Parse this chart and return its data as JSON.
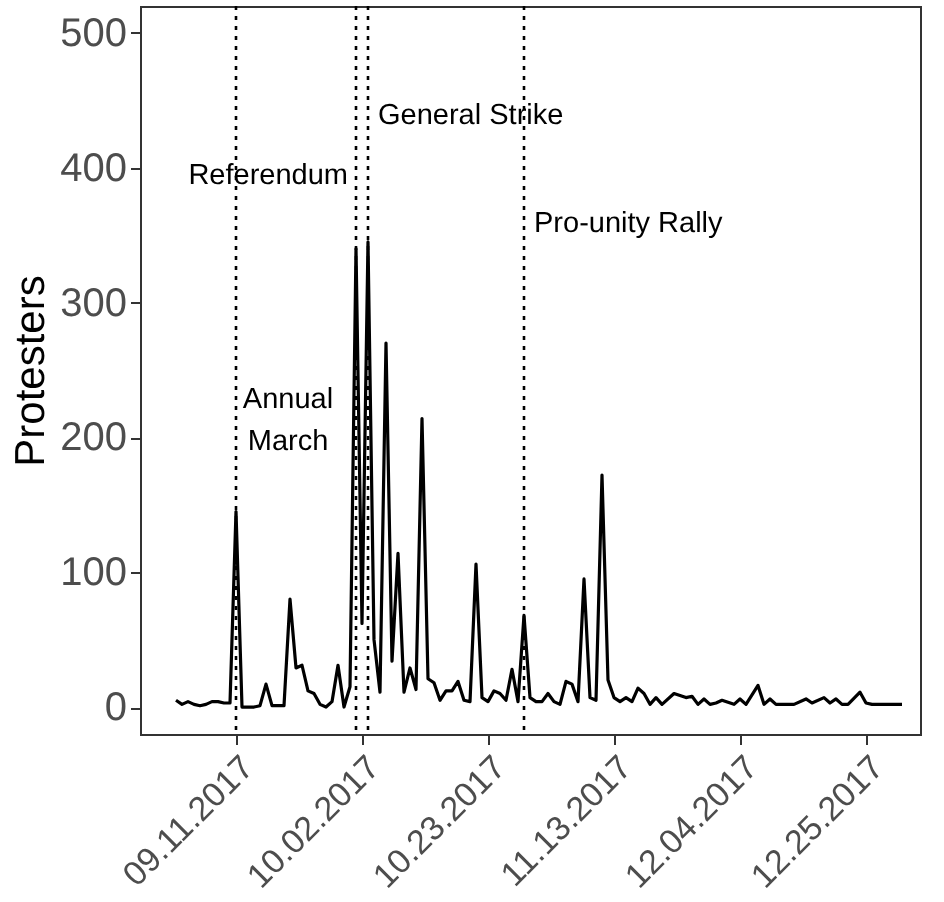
{
  "chart_data": {
    "type": "line",
    "ylabel": "Protesters",
    "x": [
      "2017-09-01",
      "2017-09-02",
      "2017-09-03",
      "2017-09-04",
      "2017-09-05",
      "2017-09-06",
      "2017-09-07",
      "2017-09-08",
      "2017-09-09",
      "2017-09-10",
      "2017-09-11",
      "2017-09-12",
      "2017-09-13",
      "2017-09-14",
      "2017-09-15",
      "2017-09-16",
      "2017-09-17",
      "2017-09-18",
      "2017-09-19",
      "2017-09-20",
      "2017-09-21",
      "2017-09-22",
      "2017-09-23",
      "2017-09-24",
      "2017-09-25",
      "2017-09-26",
      "2017-09-27",
      "2017-09-28",
      "2017-09-29",
      "2017-09-30",
      "2017-10-01",
      "2017-10-02",
      "2017-10-03",
      "2017-10-04",
      "2017-10-05",
      "2017-10-06",
      "2017-10-07",
      "2017-10-08",
      "2017-10-09",
      "2017-10-10",
      "2017-10-11",
      "2017-10-12",
      "2017-10-13",
      "2017-10-14",
      "2017-10-15",
      "2017-10-16",
      "2017-10-17",
      "2017-10-18",
      "2017-10-19",
      "2017-10-20",
      "2017-10-21",
      "2017-10-22",
      "2017-10-23",
      "2017-10-24",
      "2017-10-25",
      "2017-10-26",
      "2017-10-27",
      "2017-10-28",
      "2017-10-29",
      "2017-10-30",
      "2017-10-31",
      "2017-11-01",
      "2017-11-02",
      "2017-11-03",
      "2017-11-04",
      "2017-11-05",
      "2017-11-06",
      "2017-11-07",
      "2017-11-08",
      "2017-11-09",
      "2017-11-10",
      "2017-11-11",
      "2017-11-12",
      "2017-11-13",
      "2017-11-14",
      "2017-11-15",
      "2017-11-16",
      "2017-11-17",
      "2017-11-18",
      "2017-11-19",
      "2017-11-20",
      "2017-11-21",
      "2017-11-23",
      "2017-11-25",
      "2017-11-26",
      "2017-11-27",
      "2017-11-28",
      "2017-11-29",
      "2017-11-30",
      "2017-12-01",
      "2017-12-03",
      "2017-12-04",
      "2017-12-05",
      "2017-12-07",
      "2017-12-08",
      "2017-12-09",
      "2017-12-10",
      "2017-12-11",
      "2017-12-13",
      "2017-12-15",
      "2017-12-16",
      "2017-12-18",
      "2017-12-19",
      "2017-12-20",
      "2017-12-21",
      "2017-12-22",
      "2017-12-24",
      "2017-12-25",
      "2017-12-26",
      "2017-12-28",
      "2017-12-29",
      "2017-12-31"
    ],
    "series": [
      {
        "color": "#000000",
        "values": [
          5,
          2,
          4,
          2,
          1,
          2,
          4,
          4,
          3,
          3,
          145,
          0,
          0,
          0,
          1,
          17,
          1,
          1,
          1,
          80,
          29,
          31,
          12,
          10,
          2,
          0,
          4,
          31,
          0,
          15,
          340,
          62,
          345,
          50,
          11,
          270,
          34,
          114,
          11,
          29,
          13,
          214,
          21,
          18,
          5,
          12,
          12,
          19,
          5,
          4,
          106,
          7,
          4,
          12,
          10,
          5,
          28,
          4,
          68,
          7,
          4,
          4,
          10,
          4,
          2,
          19,
          17,
          4,
          95,
          7,
          5,
          172,
          20,
          7,
          4,
          7,
          4,
          14,
          10,
          2,
          7,
          2,
          10,
          7,
          8,
          2,
          6,
          2,
          3,
          5,
          2,
          6,
          2,
          16,
          2,
          6,
          2,
          2,
          2,
          6,
          3,
          7,
          3,
          6,
          2,
          2,
          11,
          3,
          2,
          2,
          2,
          2
        ]
      }
    ],
    "xlim": [
      "2017-08-26",
      "2018-01-03"
    ],
    "xticks": [
      {
        "value": "2017-09-11",
        "label": "09.11.2017"
      },
      {
        "value": "2017-10-02",
        "label": "10.02.2017"
      },
      {
        "value": "2017-10-23",
        "label": "10.23.2017"
      },
      {
        "value": "2017-11-13",
        "label": "11.13.2017"
      },
      {
        "value": "2017-12-04",
        "label": "12.04.2017"
      },
      {
        "value": "2017-12-25",
        "label": "12.25.2017"
      }
    ],
    "ylim": [
      -20,
      520
    ],
    "yticks": [
      0,
      100,
      200,
      300,
      400,
      500
    ],
    "grid": false,
    "ref_lines": [
      {
        "axis": "x",
        "value": "2017-09-11",
        "line_style": "dotted",
        "label": "Annual\nMarch"
      },
      {
        "axis": "x",
        "value": "2017-10-01",
        "line_style": "dotted",
        "label": "Referendum"
      },
      {
        "axis": "x",
        "value": "2017-10-03",
        "line_style": "dotted",
        "label": "General Strike"
      },
      {
        "axis": "x",
        "value": "2017-10-29",
        "line_style": "dotted",
        "label": "Pro-unity Rally"
      }
    ]
  }
}
